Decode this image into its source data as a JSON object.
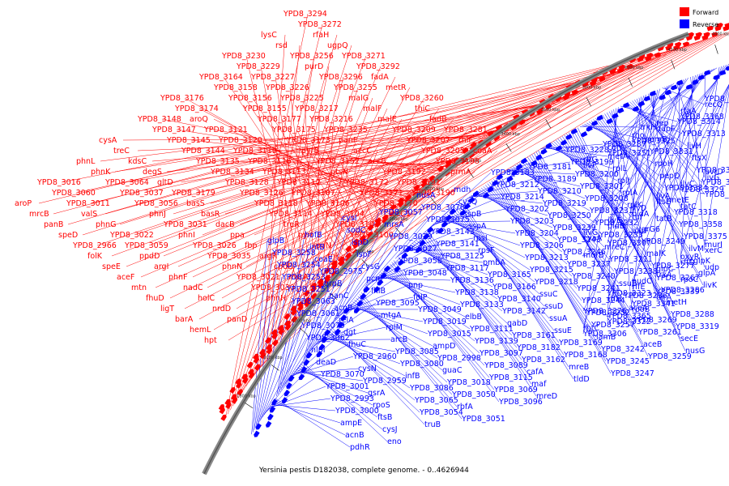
{
  "caption": "Yersinia pestis D182038, complete genome. - 0..4626944",
  "legend": [
    {
      "label": "Forward",
      "color": "#ff0000"
    },
    {
      "label": "Reverse",
      "color": "#0000ff"
    }
  ],
  "colors": {
    "forward": "#ff0000",
    "reverse": "#0000ff",
    "backbone": "#888888"
  },
  "kbp_marks": [
    "1800 kbp",
    "2000 kbp",
    "2200 kbp",
    "2400 kbp",
    "2600 kbp",
    "2800 kbp",
    "3000 kbp",
    "3200 kbp",
    "3400 kbp",
    "3600 kbp",
    "3800 kbp",
    "4000 kbp",
    "4200 kbp",
    "4400 kbp"
  ],
  "forward_labels": [
    "YPD8_3294",
    "YPD8_3272",
    "rfaH",
    "ugpQ",
    "YPD8_3271",
    "YPD8_3292",
    "fadA",
    "metR",
    "YPD8_3260",
    "thiC",
    "fadB",
    "YPD8_3281",
    "thiF",
    "coaA",
    "lysC",
    "rsd",
    "YPD8_3256",
    "purD",
    "YPD8_3296",
    "YPD8_3255",
    "malG",
    "malF",
    "malE",
    "YPD8_3209",
    "YPD8_3207",
    "YPD8_3205",
    "YPD8_3198",
    "prmA",
    "YPD8_3230",
    "YPD8_3229",
    "YPD8_3227",
    "YPD8_3226",
    "YPD8_3225",
    "YPD8_3217",
    "YPD8_3216",
    "YPD8_3235",
    "panF",
    "accC",
    "accB",
    "YPD8_3192",
    "YPD8_3191",
    "YPD8_3190",
    "YPD8_3164",
    "YPD8_3158",
    "YPD8_3156",
    "YPD8_3155",
    "YPD8_3177",
    "YPD8_3175",
    "YPD8_3173",
    "pyrB",
    "YPD8_3152",
    "ptsN",
    "YPD8_3172",
    "YPD8_3171",
    "YPD8_3170",
    "tccC1",
    "YPD8_3176",
    "YPD8_3174",
    "aroQ",
    "YPD8_3121",
    "YPD8_3120",
    "YPD8_3119",
    "YPD8_3116",
    "YPD8_3113",
    "YPD8_3112",
    "YPD8_3107",
    "YPD8_3106",
    "YPD8_3104",
    "YPD8_3101",
    "YPD8_3100",
    "YPD8_3148",
    "YPD8_3147",
    "YPD8_3145",
    "YPD8_3144",
    "YPD8_3135",
    "YPD8_3134",
    "YPD8_3128",
    "YPD8_3126",
    "YPD8_3118",
    "YPD8_3114",
    "treR",
    "pyrI",
    "rpoN",
    "rnk",
    "cysA",
    "treC",
    "kdsC",
    "degS",
    "gltD",
    "YPD8_3179",
    "basS",
    "basR",
    "dacB",
    "ppa",
    "fbp",
    "argR",
    "cpdB",
    "msrA",
    "phnL",
    "phnK",
    "YPD8_3064",
    "YPD8_3037",
    "YPD8_3056",
    "phnJ",
    "YPD8_3031",
    "phnI",
    "YPD8_3026",
    "YPD8_3035",
    "phnN",
    "YPD8_3021",
    "YPD8_3030",
    "phnH",
    "YPD8_3016",
    "YPD8_3060",
    "YPD8_3011",
    "valS",
    "phnG",
    "YPD8_3022",
    "YPD8_3059",
    "ppdD",
    "argI",
    "phnF",
    "nadC",
    "holC",
    "nrdD",
    "panD",
    "aroP",
    "mrcB",
    "panB",
    "speD",
    "YPD8_2966",
    "folK",
    "speE",
    "aceF",
    "mtn",
    "fhuD",
    "ligT",
    "barA",
    "hemL",
    "hpt"
  ],
  "reverse_labels": [
    "glpB",
    "YPD8_3258",
    "YPD8_3254",
    "YPD8_3253",
    "YPD8_3251",
    "YPD8_3063",
    "YPD8_3061",
    "YPD8_3079",
    "YPD8_3062",
    "nlpI",
    "deaD",
    "YPD8_3070",
    "YPD8_3001",
    "YPD8_2993",
    "YPD8_3000",
    "ampE",
    "acnB",
    "pdhR",
    "hofB",
    "intB",
    "coaE",
    "YPD8_2975",
    "hrpB",
    "panC",
    "acnB",
    "relA",
    "dgt",
    "fhuC",
    "YPD8_2960",
    "cysN",
    "YPD8_2959",
    "gsrA",
    "rpoS",
    "ftsB",
    "cysJ",
    "eno",
    "cysI",
    "sodC",
    "ispD",
    "ispF",
    "cysG",
    "pcm",
    "fklB",
    "YPD8_3095",
    "mtgA",
    "rplM",
    "arcB",
    "YPD8_3085",
    "YPD8_3080",
    "infB",
    "YPD8_3086",
    "YPD8_3065",
    "YPD8_3054",
    "truB",
    "YPD8_3057",
    "mrsA",
    "YPD8_3029",
    "YPD8_3027",
    "YPD8_3058",
    "YPD8_3048",
    "pnp",
    "folP",
    "YPD8_3049",
    "YPD8_3019",
    "YPD8_3015",
    "ampD",
    "YPD8_2998",
    "guaC",
    "YPD8_3018",
    "YPD8_3050",
    "rbfA",
    "YPD8_3051",
    "nusA",
    "YPD8_3078",
    "YPD8_3075",
    "YPD8_3143",
    "YPD8_3141",
    "YPD8_3125",
    "YPD8_3117",
    "YPD8_3136",
    "YPD8_3138",
    "YPD8_3133",
    "elbB",
    "YPD8_3111",
    "YPD8_3139",
    "YPD8_3097",
    "YPD8_3089",
    "YPD8_3115",
    "YPD8_3069",
    "YPD8_3096",
    "mdh",
    "cysQ",
    "sspB",
    "sspA",
    "rpsI",
    "rpsF",
    "pmbA",
    "YPD8_3165",
    "YPD8_3166",
    "YPD8_3140",
    "YPD8_3142",
    "gabD",
    "YPD8_3161",
    "YPD8_3182",
    "YPD8_3162",
    "cafA",
    "maf",
    "mreD",
    "YPD8_3183",
    "YPD8_3212",
    "YPD8_3214",
    "YPD8_3202",
    "YPD8_3203",
    "YPD8_3204",
    "YPD8_3206",
    "YPD8_3213",
    "YPD8_3215",
    "YPD8_3218",
    "ssuC",
    "ssuD",
    "ssuA",
    "ssuE",
    "YPD8_3169",
    "YPD8_3168",
    "mreB",
    "tldD",
    "YPD8_3181",
    "YPD8_3189",
    "YPD8_3210",
    "YPD8_3219",
    "YPD8_3250",
    "YPD8_3239",
    "YPD8_3243",
    "YPD8_3246",
    "YPD8_3237",
    "YPD8_3240",
    "YPD8_3241",
    "YPD8_3244",
    "YPD8_3252",
    "YPD8_3257",
    "lamB",
    "YPD8_3242",
    "YPD8_3245",
    "YPD8_3247",
    "YPD8_3228",
    "YPD8_3199",
    "YPD8_3200",
    "YPD8_3201",
    "YPD8_3208",
    "YPD8_3231",
    "YPD8_3232",
    "YPD8_3233",
    "mreC",
    "YPD8_3211",
    "YPD8_3238",
    "ssuB",
    "YPD8_3236",
    "aceA",
    "YPD8_3269",
    "YPD8_3261",
    "aceB",
    "YPD8_3259",
    "YPD8_3287",
    "metA",
    "rplL",
    "rplJ",
    "rplA",
    "rplK",
    "tuf",
    "vgrG6",
    "YPD8_3249",
    "malK",
    "YPD8_3277",
    "YPD8_3267",
    "YPD8_3286",
    "metH",
    "YPD8_3288",
    "YPD8_3319",
    "secE",
    "nusG",
    "trkH",
    "hemB",
    "YPD8_3331",
    "rpoH",
    "pepQ",
    "YPD8_3334",
    "metE",
    "YPD8_3318",
    "YPD8_3358",
    "YPD8_3375",
    "ilvM",
    "glpK",
    "glpA",
    "livK",
    "birA",
    "rpoB",
    "YPD8_3322",
    "YPD8_3306",
    "YPD8_3314",
    "YPD8_3313",
    "livH",
    "ftsX",
    "YPD8_3324",
    "YPD8_3284",
    "YPD8_3285",
    "tatC",
    "tatB",
    "aarF",
    "YPD8_3307",
    "murB",
    "udp",
    "rpoC",
    "YPD8_3339",
    "YPD8_3341",
    "YPD8_3365",
    "rhtC",
    "recQ",
    "YPD8_3368",
    "dapF",
    "YPD8_3325",
    "YPD8_3351",
    "livF",
    "livG",
    "YPD8_3329",
    "ftsE",
    "pldA",
    "pldB",
    "cyaA",
    "xerC",
    "rffD",
    "trxA",
    "rffE",
    "rffH",
    "YPD8_3376",
    "YPD8_3389",
    "rfaA",
    "rep",
    "rho",
    "corA",
    "rffG",
    "uvrD",
    "ilvC",
    "ilvA",
    "ilvD",
    "ilvE",
    "ilvG",
    "murI",
    "oxyR",
    "glpC",
    "nudC",
    "YPD8_3323"
  ]
}
